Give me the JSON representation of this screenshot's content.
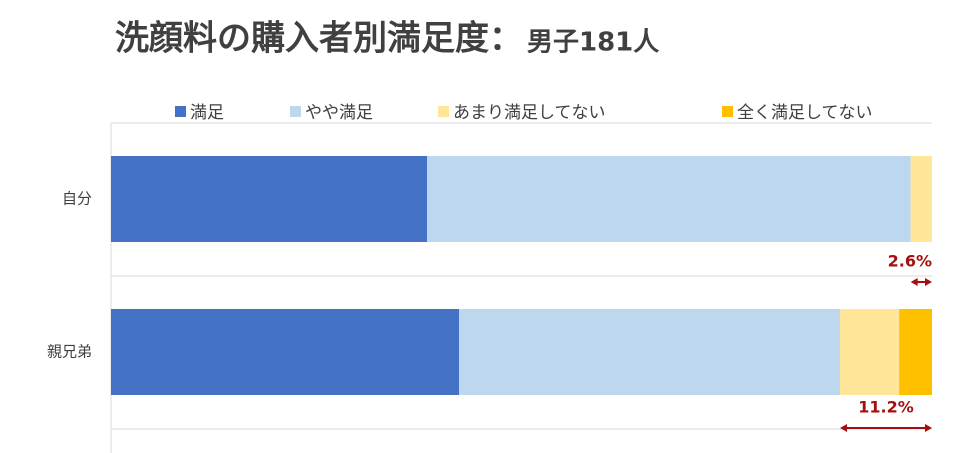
{
  "chart_data": {
    "type": "stacked_bar_horizontal",
    "title": "洗顔料の購入者別満足度：",
    "subtitle": "男子181人",
    "categories": [
      "自分",
      "親兄弟"
    ],
    "series": [
      {
        "name": "満足",
        "color": "#4472c4",
        "values": [
          38.5,
          42.4
        ]
      },
      {
        "name": "やや満足",
        "color": "#bdd7ee",
        "values": [
          58.9,
          46.4
        ]
      },
      {
        "name": "あまり満足してない",
        "color": "#ffe699",
        "values": [
          2.6,
          7.2
        ]
      },
      {
        "name": "全く満足してない",
        "color": "#ffc000",
        "values": [
          0,
          4.0
        ]
      }
    ],
    "xlim": [
      0,
      100
    ],
    "legend": "top",
    "annotations": [
      "2.6%",
      "11.2%"
    ],
    "annotation_color": "#a50f0f"
  }
}
